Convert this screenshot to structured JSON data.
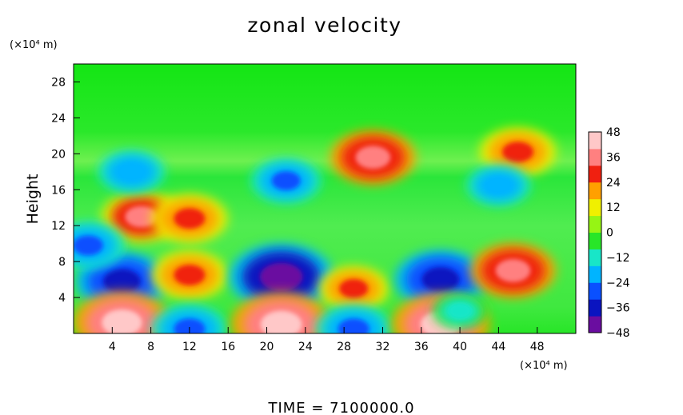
{
  "chart_data": {
    "type": "heatmap",
    "title": "zonal velocity",
    "ylabel": "Height",
    "xunit": "(×10⁴ m)",
    "yunit": "(×10⁴ m)",
    "footer": "TIME = 7100000.0",
    "xlim": [
      0,
      52
    ],
    "ylim": [
      0,
      30
    ],
    "xticks": [
      4,
      8,
      12,
      16,
      20,
      24,
      28,
      32,
      36,
      40,
      44,
      48
    ],
    "yticks": [
      4,
      8,
      12,
      16,
      20,
      24,
      28
    ],
    "colorbar": {
      "range": [
        -48,
        48
      ],
      "ticks": [
        48,
        36,
        24,
        12,
        0,
        -12,
        -24,
        -36,
        -48
      ],
      "colors": [
        "#6a0da0",
        "#0a14c0",
        "#0a50ff",
        "#00b4ff",
        "#18e6c8",
        "#28e628",
        "#96f514",
        "#f0f000",
        "#ffa000",
        "#f02010",
        "#ff8080",
        "#ffc8c8"
      ]
    },
    "features": [
      {
        "x": 5,
        "y": 5.8,
        "value": -40
      },
      {
        "x": 5,
        "y": 1.2,
        "value": 44
      },
      {
        "x": 12,
        "y": 6.5,
        "value": 30
      },
      {
        "x": 12,
        "y": 0.5,
        "value": -30
      },
      {
        "x": 21.5,
        "y": 6.3,
        "value": -48
      },
      {
        "x": 21.5,
        "y": 1.0,
        "value": 46
      },
      {
        "x": 29,
        "y": 5.0,
        "value": 26
      },
      {
        "x": 29,
        "y": 0.5,
        "value": -30
      },
      {
        "x": 38,
        "y": 6.0,
        "value": -40
      },
      {
        "x": 38,
        "y": 1.0,
        "value": 44
      },
      {
        "x": 45.5,
        "y": 7.0,
        "value": 36
      },
      {
        "x": 40,
        "y": 2.5,
        "value": -16
      },
      {
        "x": 31,
        "y": 19.6,
        "value": 36
      },
      {
        "x": 46,
        "y": 20.2,
        "value": 30
      },
      {
        "x": 7,
        "y": 13,
        "value": 32
      },
      {
        "x": 12,
        "y": 12.8,
        "value": 30
      },
      {
        "x": 1.5,
        "y": 9.8,
        "value": -28
      },
      {
        "x": 6,
        "y": 18,
        "value": -24
      },
      {
        "x": 22,
        "y": 17,
        "value": -26
      },
      {
        "x": 44,
        "y": 16.5,
        "value": -22
      }
    ]
  }
}
